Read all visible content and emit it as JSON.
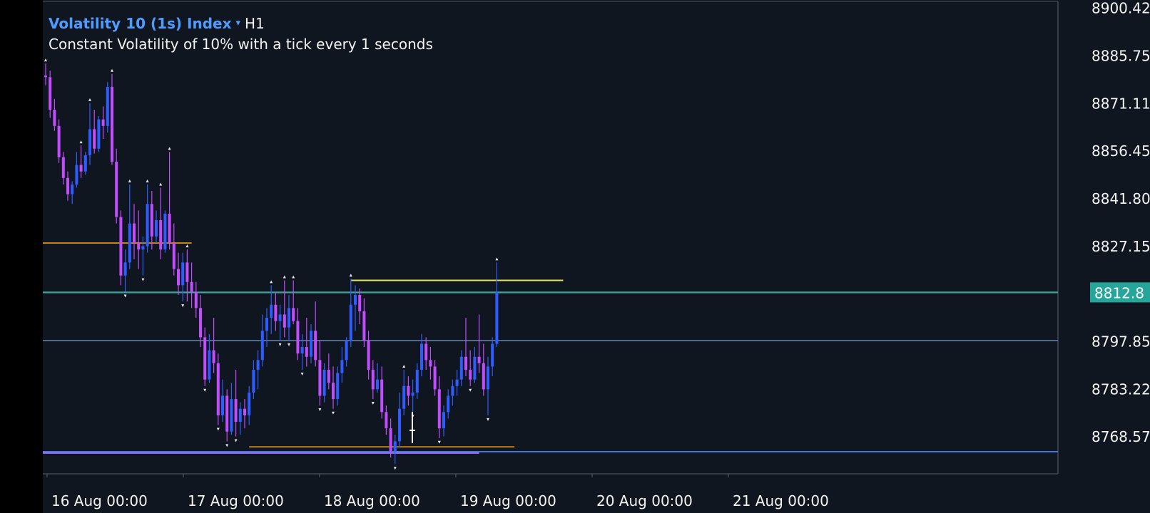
{
  "header": {
    "symbol": "Volatility 10 (1s) Index",
    "symbol_arrow": "▾",
    "timeframe": "H1",
    "description": "Constant Volatility of 10% with a tick every 1 seconds"
  },
  "colors": {
    "background": "#0f1620",
    "outer_background": "#000000",
    "frame": "#4a5361",
    "bullish": "#2f5cff",
    "bearish": "#c34cff",
    "current_price_line": "#38a89d",
    "current_price_badge": "#26a69a",
    "orange_level": "#f39c12",
    "yellow_level": "#dde45d",
    "blue_level": "#4a89ff",
    "purple_level": "#9b6cff",
    "gray_level": "#5b7ca8"
  },
  "chart_data": {
    "type": "candlestick",
    "title": "",
    "x_tick_labels": [
      "16 Aug 00:00",
      "17 Aug 00:00",
      "18 Aug 00:00",
      "19 Aug 00:00",
      "20 Aug 00:00",
      "21 Aug 00:00"
    ],
    "y_tick_labels": [
      "8900.42",
      "8885.75",
      "8871.11",
      "8856.45",
      "8841.80",
      "8827.15",
      "8812.80",
      "8797.85",
      "8783.22",
      "8768.57"
    ],
    "y_ticks": [
      8900.42,
      8885.75,
      8871.11,
      8856.45,
      8841.8,
      8827.15,
      8812.8,
      8797.85,
      8783.22,
      8768.57
    ],
    "y_range": [
      8757.0,
      8902.3
    ],
    "current_price": 8812.8,
    "current_price_label": "8812.8",
    "candles": [
      [
        8879.5,
        8883.2,
        8876.5,
        8879.0
      ],
      [
        8879.0,
        8881.0,
        8866.5,
        8869.0
      ],
      [
        8869.0,
        8872.3,
        8862.5,
        8864.0
      ],
      [
        8864.0,
        8866.0,
        8852.6,
        8854.4
      ],
      [
        8854.4,
        8856.0,
        8846.0,
        8848.0
      ],
      [
        8848.0,
        8850.0,
        8841.0,
        8843.0
      ],
      [
        8843.0,
        8847.0,
        8840.0,
        8846.0
      ],
      [
        8846.0,
        8856.0,
        8845.0,
        8852.0
      ],
      [
        8852.0,
        8858.0,
        8848.0,
        8850.0
      ],
      [
        8850.0,
        8856.0,
        8849.0,
        8855.0
      ],
      [
        8855.0,
        8871.0,
        8852.0,
        8863.0
      ],
      [
        8863.0,
        8869.0,
        8855.5,
        8857.0
      ],
      [
        8857.0,
        8867.0,
        8856.0,
        8866.0
      ],
      [
        8866.0,
        8870.0,
        8860.0,
        8864.0
      ],
      [
        8864.0,
        8877.5,
        8862.0,
        8876.0
      ],
      [
        8876.0,
        8880.0,
        8852.0,
        8853.0
      ],
      [
        8853.0,
        8857.0,
        8834.0,
        8836.0
      ],
      [
        8836.0,
        8838.0,
        8815.0,
        8818.0
      ],
      [
        8818.0,
        8826.0,
        8813.0,
        8822.0
      ],
      [
        8822.0,
        8846.0,
        8820.0,
        8834.0
      ],
      [
        8834.0,
        8840.0,
        8823.0,
        8828.0
      ],
      [
        8828.0,
        8838.0,
        8820.0,
        8826.0
      ],
      [
        8826.0,
        8830.0,
        8818.0,
        8827.0
      ],
      [
        8827.0,
        8846.0,
        8825.0,
        8840.0
      ],
      [
        8840.0,
        8844.0,
        8826.0,
        8830.0
      ],
      [
        8830.0,
        8838.0,
        8828.0,
        8835.0
      ],
      [
        8835.0,
        8845.0,
        8823.0,
        8826.0
      ],
      [
        8826.0,
        8838.0,
        8825.0,
        8837.0
      ],
      [
        8837.0,
        8856.0,
        8826.0,
        8828.0
      ],
      [
        8828.0,
        8834.0,
        8818.0,
        8820.0
      ],
      [
        8820.0,
        8825.0,
        8812.0,
        8815.0
      ],
      [
        8815.0,
        8825.0,
        8810.0,
        8822.0
      ],
      [
        8822.0,
        8826.0,
        8810.0,
        8816.0
      ],
      [
        8816.0,
        8822.0,
        8808.0,
        8813.0
      ],
      [
        8813.0,
        8816.0,
        8805.0,
        8808.0
      ],
      [
        8808.0,
        8812.0,
        8796.0,
        8799.0
      ],
      [
        8799.0,
        8802.0,
        8784.0,
        8786.0
      ],
      [
        8786.0,
        8800.0,
        8785.0,
        8795.0
      ],
      [
        8795.0,
        8805.0,
        8788.0,
        8791.0
      ],
      [
        8791.0,
        8794.0,
        8772.0,
        8775.0
      ],
      [
        8775.0,
        8786.0,
        8773.0,
        8781.0
      ],
      [
        8781.0,
        8783.0,
        8767.0,
        8770.0
      ],
      [
        8770.0,
        8785.0,
        8769.0,
        8780.0
      ],
      [
        8780.0,
        8789.0,
        8768.5,
        8773.0
      ],
      [
        8773.0,
        8779.0,
        8769.0,
        8777.0
      ],
      [
        8777.0,
        8780.0,
        8771.0,
        8775.0
      ],
      [
        8775.0,
        8784.0,
        8772.0,
        8782.0
      ],
      [
        8782.0,
        8792.0,
        8780.0,
        8789.0
      ],
      [
        8789.0,
        8795.0,
        8783.0,
        8792.0
      ],
      [
        8792.0,
        8806.0,
        8790.0,
        8801.0
      ],
      [
        8801.0,
        8808.0,
        8796.0,
        8805.0
      ],
      [
        8805.0,
        8815.0,
        8800.0,
        8809.0
      ],
      [
        8809.0,
        8813.0,
        8801.0,
        8804.0
      ],
      [
        8804.0,
        8809.0,
        8798.0,
        8806.0
      ],
      [
        8806.0,
        8816.5,
        8799.0,
        8802.0
      ],
      [
        8802.0,
        8812.0,
        8798.0,
        8808.0
      ],
      [
        8808.0,
        8816.5,
        8803.0,
        8804.0
      ],
      [
        8804.0,
        8808.0,
        8792.0,
        8794.0
      ],
      [
        8794.0,
        8800.0,
        8789.0,
        8796.0
      ],
      [
        8796.0,
        8805.0,
        8790.0,
        8793.0
      ],
      [
        8793.0,
        8803.0,
        8791.0,
        8801.0
      ],
      [
        8801.0,
        8810.0,
        8790.0,
        8792.0
      ],
      [
        8792.0,
        8798.0,
        8778.0,
        8781.0
      ],
      [
        8781.0,
        8791.0,
        8779.0,
        8789.0
      ],
      [
        8789.0,
        8794.0,
        8783.0,
        8785.0
      ],
      [
        8785.0,
        8790.0,
        8777.0,
        8780.0
      ],
      [
        8780.0,
        8790.0,
        8778.0,
        8788.0
      ],
      [
        8788.0,
        8796.0,
        8785.0,
        8792.0
      ],
      [
        8792.0,
        8799.0,
        8790.0,
        8798.0
      ],
      [
        8798.0,
        8817.0,
        8796.0,
        8809.0
      ],
      [
        8809.0,
        8815.0,
        8801.0,
        8812.0
      ],
      [
        8812.0,
        8814.0,
        8803.0,
        8807.0
      ],
      [
        8807.0,
        8811.0,
        8796.0,
        8798.0
      ],
      [
        8798.0,
        8801.0,
        8786.0,
        8789.0
      ],
      [
        8789.0,
        8792.0,
        8780.0,
        8783.0
      ],
      [
        8783.0,
        8791.0,
        8782.0,
        8786.0
      ],
      [
        8786.0,
        8790.0,
        8774.0,
        8776.0
      ],
      [
        8776.0,
        8778.0,
        8769.0,
        8771.0
      ],
      [
        8771.0,
        8774.0,
        8762.0,
        8764.0
      ],
      [
        8764.0,
        8769.0,
        8760.0,
        8767.0
      ],
      [
        8767.0,
        8782.0,
        8765.0,
        8777.0
      ],
      [
        8777.0,
        8789.0,
        8775.0,
        8784.0
      ],
      [
        8784.0,
        8787.0,
        8778.0,
        8781.0
      ],
      [
        8781.0,
        8786.0,
        8776.0,
        8782.0
      ],
      [
        8782.0,
        8791.0,
        8780.0,
        8789.0
      ],
      [
        8789.0,
        8800.0,
        8787.0,
        8797.0
      ],
      [
        8797.0,
        8799.0,
        8789.0,
        8792.0
      ],
      [
        8792.0,
        8796.0,
        8786.0,
        8790.0
      ],
      [
        8790.0,
        8792.0,
        8781.0,
        8783.0
      ],
      [
        8783.0,
        8787.0,
        8768.0,
        8771.0
      ],
      [
        8771.0,
        8778.0,
        8768.5,
        8776.0
      ],
      [
        8776.0,
        8783.0,
        8774.0,
        8781.0
      ],
      [
        8781.0,
        8786.0,
        8778.0,
        8784.0
      ],
      [
        8784.0,
        8789.0,
        8781.0,
        8786.0
      ],
      [
        8786.0,
        8795.0,
        8784.0,
        8793.0
      ],
      [
        8793.0,
        8805.0,
        8787.0,
        8789.0
      ],
      [
        8789.0,
        8795.0,
        8784.0,
        8786.0
      ],
      [
        8786.0,
        8796.0,
        8785.0,
        8793.0
      ],
      [
        8793.0,
        8806.0,
        8788.0,
        8791.0
      ],
      [
        8791.0,
        8797.0,
        8781.0,
        8783.0
      ],
      [
        8783.0,
        8793.0,
        8775.0,
        8790.0
      ],
      [
        8790.0,
        8799.0,
        8787.0,
        8797.0
      ],
      [
        8797.0,
        8822.0,
        8796.0,
        8812.8
      ]
    ],
    "levels": [
      {
        "value": 8828.0,
        "start_index": 0,
        "end_index": 33,
        "color_key": "orange_level"
      },
      {
        "value": 8816.5,
        "start_index": 69,
        "end_index": 117,
        "color_key": "yellow_level"
      },
      {
        "value": 8812.8,
        "start_index": 0,
        "end_index": 150,
        "color_key": "current_price_line"
      },
      {
        "value": 8798.0,
        "start_index": 0,
        "end_index": 150,
        "color_key": "gray_level"
      },
      {
        "value": 8765.3,
        "start_index": 46,
        "end_index": 106,
        "color_key": "orange_level"
      },
      {
        "value": 8763.8,
        "start_index": 0,
        "end_index": 150,
        "color_key": "blue_level"
      },
      {
        "value": 8763.4,
        "start_index": 0,
        "end_index": 98,
        "color_key": "purple_level"
      }
    ]
  }
}
